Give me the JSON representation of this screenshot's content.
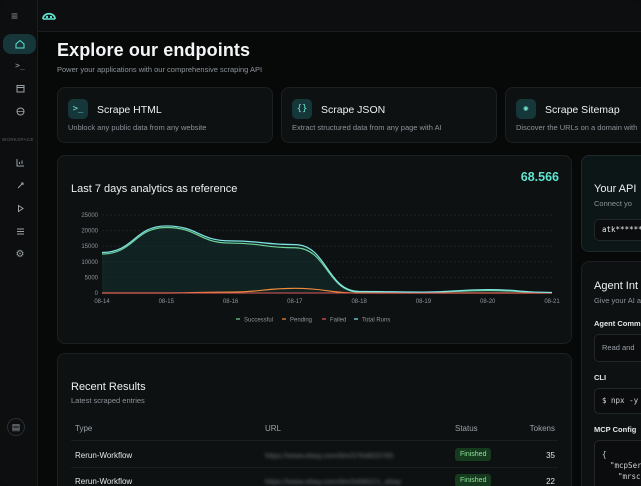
{
  "header": {
    "title": "Explore our endpoints",
    "subtitle": "Power your applications with our comprehensive scraping API"
  },
  "sidebar": {
    "section_label": "WORKSPACE",
    "icons": [
      "home-icon",
      "terminal-icon",
      "calendar-icon",
      "globe-icon",
      "chart-icon",
      "rocket-icon",
      "play-icon",
      "list-icon",
      "gear-icon"
    ]
  },
  "endpoints": [
    {
      "icon": ">_",
      "title": "Scrape HTML",
      "desc": "Unblock any public data from any website"
    },
    {
      "icon": "{}",
      "title": "Scrape JSON",
      "desc": "Extract structured data from any page with AI"
    },
    {
      "icon": "✺",
      "title": "Scrape Sitemap",
      "desc": "Discover the URLs on a domain with"
    }
  ],
  "analytics": {
    "title": "Last 7 days analytics as reference",
    "value": "68.566"
  },
  "chart_data": {
    "type": "line",
    "x": [
      "08-14",
      "08-15",
      "08-16",
      "08-17",
      "08-18",
      "08-19",
      "08-20",
      "08-21"
    ],
    "yticks": [
      "25000",
      "20000",
      "15000",
      "10000",
      "5000",
      "0"
    ],
    "ylim": [
      0,
      25000
    ],
    "series": [
      {
        "name": "Successful",
        "color": "#6fd39a",
        "values": [
          12500,
          21000,
          16000,
          14500,
          300,
          200,
          800,
          100
        ]
      },
      {
        "name": "Pending",
        "color": "#f08c3c",
        "values": [
          0,
          0,
          300,
          1500,
          0,
          0,
          0,
          0
        ]
      },
      {
        "name": "Failed",
        "color": "#e05a5a",
        "values": [
          0,
          0,
          0,
          0,
          0,
          0,
          0,
          0
        ]
      },
      {
        "name": "Total Runs",
        "color": "#7fe6e6",
        "values": [
          13000,
          21500,
          16700,
          15500,
          500,
          300,
          1100,
          150
        ]
      }
    ],
    "legend_position": "bottom",
    "grid": true
  },
  "results": {
    "title": "Recent Results",
    "subtitle": "Latest scraped entries",
    "columns": [
      "Type",
      "URL",
      "Status",
      "Tokens"
    ],
    "rows": [
      {
        "type": "Rerun-Workflow",
        "url": "https://www.ebay.com/itm/3764820765",
        "status": "Finished",
        "tokens": "35"
      },
      {
        "type": "Rerun-Workflow",
        "url": "https://www.ebay.com/itm/3498221_ebay",
        "status": "Finished",
        "tokens": "22"
      }
    ]
  },
  "right_panel": {
    "api_title": "Your API",
    "api_sub": "Connect yo",
    "api_key": "atk*********",
    "agent_title": "Agent Int",
    "agent_sub": "Give your AI a",
    "agent_cmd_label": "Agent Comm",
    "agent_cmd_value": "Read and",
    "cli_label": "CLI",
    "cli_value": "$ npx -y",
    "mcp_label": "MCP Config",
    "mcp_line1": "{",
    "mcp_line2": "\"mcpServ",
    "mcp_line3": "\"mrsc"
  }
}
